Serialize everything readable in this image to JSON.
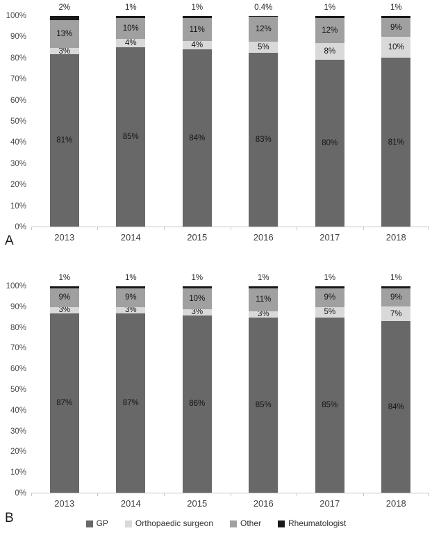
{
  "colors": {
    "gp": "#686868",
    "orthopaedic_surgeon": "#d9d9d9",
    "other": "#a0a0a0",
    "rheumatologist": "#191919",
    "axis_text": "#4a4a4a",
    "baseline": "#c6c6c6"
  },
  "legend": [
    {
      "label": "GP",
      "color": "#686868"
    },
    {
      "label": "Orthopaedic surgeon",
      "color": "#d9d9d9"
    },
    {
      "label": "Other",
      "color": "#a0a0a0"
    },
    {
      "label": "Rheumatologist",
      "color": "#191919"
    }
  ],
  "chart_data": [
    {
      "type": "bar",
      "stacked": true,
      "panel": "A",
      "title": "",
      "xlabel": "",
      "ylabel": "",
      "ylim": [
        0,
        100
      ],
      "grid": false,
      "categories": [
        "2013",
        "2014",
        "2015",
        "2016",
        "2017",
        "2018"
      ],
      "y_ticks": [
        "100%",
        "90%",
        "80%",
        "70%",
        "60%",
        "50%",
        "40%",
        "30%",
        "20%",
        "10%",
        "0%"
      ],
      "series": [
        {
          "name": "GP",
          "color": "#686868",
          "label_position": "inside",
          "values": [
            81,
            85,
            84,
            83,
            80,
            81
          ],
          "labels": [
            "81%",
            "85%",
            "84%",
            "83%",
            "80%",
            "81%"
          ]
        },
        {
          "name": "Orthopaedic surgeon",
          "color": "#d9d9d9",
          "label_position": "inside",
          "values": [
            3,
            4,
            4,
            5,
            8,
            10
          ],
          "labels": [
            "3%",
            "4%",
            "4%",
            "5%",
            "8%",
            "10%"
          ]
        },
        {
          "name": "Other",
          "color": "#a0a0a0",
          "label_position": "inside",
          "values": [
            13,
            10,
            11,
            12,
            12,
            9
          ],
          "labels": [
            "13%",
            "10%",
            "11%",
            "12%",
            "12%",
            "9%"
          ]
        },
        {
          "name": "Rheumatologist",
          "color": "#191919",
          "label_position": "above",
          "values": [
            2,
            1,
            1,
            0.4,
            1,
            1
          ],
          "labels": [
            "2%",
            "1%",
            "1%",
            "0.4%",
            "1%",
            "1%"
          ]
        }
      ]
    },
    {
      "type": "bar",
      "stacked": true,
      "panel": "B",
      "title": "",
      "xlabel": "",
      "ylabel": "",
      "ylim": [
        0,
        100
      ],
      "grid": false,
      "categories": [
        "2013",
        "2014",
        "2015",
        "2016",
        "2017",
        "2018"
      ],
      "y_ticks": [
        "100%",
        "90%",
        "80%",
        "70%",
        "60%",
        "50%",
        "40%",
        "30%",
        "20%",
        "10%",
        "0%"
      ],
      "series": [
        {
          "name": "GP",
          "color": "#686868",
          "label_position": "inside",
          "values": [
            87,
            87,
            86,
            85,
            85,
            84
          ],
          "labels": [
            "87%",
            "87%",
            "86%",
            "85%",
            "85%",
            "84%"
          ]
        },
        {
          "name": "Orthopaedic surgeon",
          "color": "#d9d9d9",
          "label_position": "inside",
          "values": [
            3,
            3,
            3,
            3,
            5,
            7
          ],
          "labels": [
            "3%",
            "3%",
            "3%",
            "3%",
            "5%",
            "7%"
          ]
        },
        {
          "name": "Other",
          "color": "#a0a0a0",
          "label_position": "inside",
          "values": [
            9,
            9,
            10,
            11,
            9,
            9
          ],
          "labels": [
            "9%",
            "9%",
            "10%",
            "11%",
            "9%",
            "9%"
          ]
        },
        {
          "name": "Rheumatologist",
          "color": "#191919",
          "label_position": "above",
          "values": [
            1,
            1,
            1,
            1,
            1,
            1
          ],
          "labels": [
            "1%",
            "1%",
            "1%",
            "1%",
            "1%",
            "1%"
          ]
        }
      ]
    }
  ]
}
